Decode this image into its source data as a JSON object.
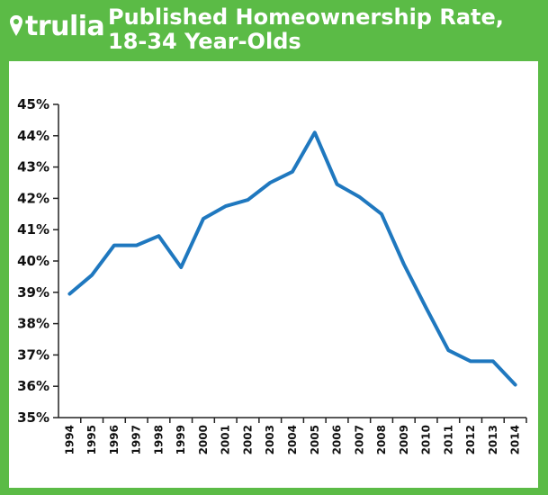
{
  "header": {
    "logo_text": "trulia",
    "title_line1": "Published Homeownership Rate,",
    "title_line2": "18-34 Year-Olds"
  },
  "colors": {
    "brand_green": "#5bbb46",
    "line": "#1f78bf"
  },
  "chart_data": {
    "type": "line",
    "title": "Published Homeownership Rate, 18-34 Year-Olds",
    "xlabel": "",
    "ylabel": "",
    "x": [
      "1994",
      "1995",
      "1996",
      "1997",
      "1998",
      "1999",
      "2000",
      "2001",
      "2002",
      "2003",
      "2004",
      "2005",
      "2006",
      "2007",
      "2008",
      "2009",
      "2010",
      "2011",
      "2012",
      "2013",
      "2014"
    ],
    "series": [
      {
        "values": [
          38.95,
          39.55,
          40.5,
          40.5,
          40.8,
          39.8,
          41.35,
          41.75,
          41.95,
          42.5,
          42.85,
          44.1,
          42.45,
          42.05,
          41.5,
          39.9,
          38.5,
          37.15,
          36.8,
          36.8,
          36.05
        ]
      }
    ],
    "ylim": [
      35,
      45
    ],
    "yticks": [
      35,
      36,
      37,
      38,
      39,
      40,
      41,
      42,
      43,
      44,
      45
    ],
    "ytick_labels": [
      "35%",
      "36%",
      "37%",
      "38%",
      "39%",
      "40%",
      "41%",
      "42%",
      "43%",
      "44%",
      "45%"
    ],
    "grid": false,
    "legend": "none"
  }
}
